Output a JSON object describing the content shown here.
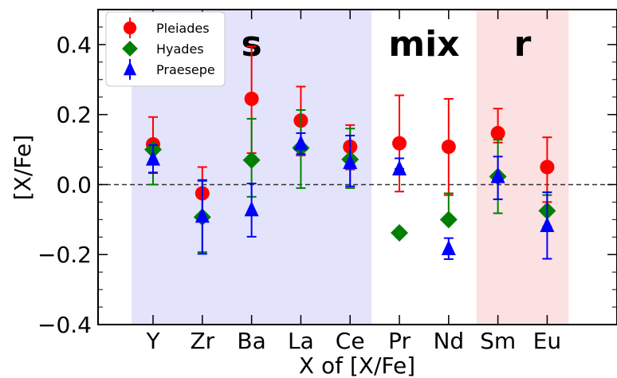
{
  "chart_data": {
    "type": "scatter",
    "xlabel": "X of [X/Fe]",
    "ylabel": "[X/Fe]",
    "ylim": [
      -0.4,
      0.5
    ],
    "yticks": [
      -0.4,
      -0.2,
      0.0,
      0.2,
      0.4
    ],
    "ytick_labels": [
      "−0.4",
      "−0.2",
      "0.0",
      "0.2",
      "0.4"
    ],
    "categories": [
      "Y",
      "Zr",
      "Ba",
      "La",
      "Ce",
      "Pr",
      "Nd",
      "Sm",
      "Eu"
    ],
    "reference_line": {
      "y": 0.0,
      "style": "dashed",
      "color": "#333333"
    },
    "regions": [
      {
        "label": "s",
        "from": "Y",
        "to": "Ce",
        "color": "#e3e3fb"
      },
      {
        "label": "mix",
        "from": "Pr",
        "to": "Nd",
        "color": "#ffffff"
      },
      {
        "label": "r",
        "from": "Sm",
        "to": "Eu",
        "color": "#fbe1e1"
      }
    ],
    "legend_position": "top-left",
    "grid": false,
    "series": [
      {
        "name": "Pleiades",
        "color": "#ff0000",
        "marker": "circle",
        "values": [
          0.115,
          -0.025,
          0.245,
          0.183,
          0.108,
          0.118,
          0.108,
          0.147,
          0.05
        ],
        "err_low": [
          0.08,
          0.07,
          0.155,
          0.1,
          0.065,
          0.138,
          0.138,
          0.027,
          0.1
        ],
        "err_high": [
          0.078,
          0.075,
          0.15,
          0.097,
          0.062,
          0.137,
          0.137,
          0.07,
          0.085
        ]
      },
      {
        "name": "Hyades",
        "color": "#008000",
        "marker": "diamond",
        "values": [
          0.1,
          -0.093,
          0.07,
          0.105,
          0.072,
          -0.138,
          -0.1,
          0.023,
          -0.075
        ],
        "err_low": [
          0.1,
          0.1,
          0.105,
          0.115,
          0.082,
          0.01,
          0.005,
          0.105,
          0.045
        ],
        "err_high": [
          0.0,
          0.103,
          0.118,
          0.108,
          0.088,
          0.0,
          0.075,
          0.105,
          0.045
        ]
      },
      {
        "name": "Praesepe",
        "color": "#0000ff",
        "marker": "triangle",
        "values": [
          0.073,
          -0.09,
          -0.072,
          0.117,
          0.063,
          0.045,
          -0.183,
          0.023,
          -0.117
        ],
        "err_low": [
          0.04,
          0.108,
          0.077,
          0.03,
          0.068,
          0.0,
          0.03,
          0.065,
          0.095
        ],
        "err_high": [
          0.04,
          0.103,
          0.075,
          0.03,
          0.077,
          0.03,
          0.03,
          0.057,
          0.095
        ]
      }
    ]
  }
}
